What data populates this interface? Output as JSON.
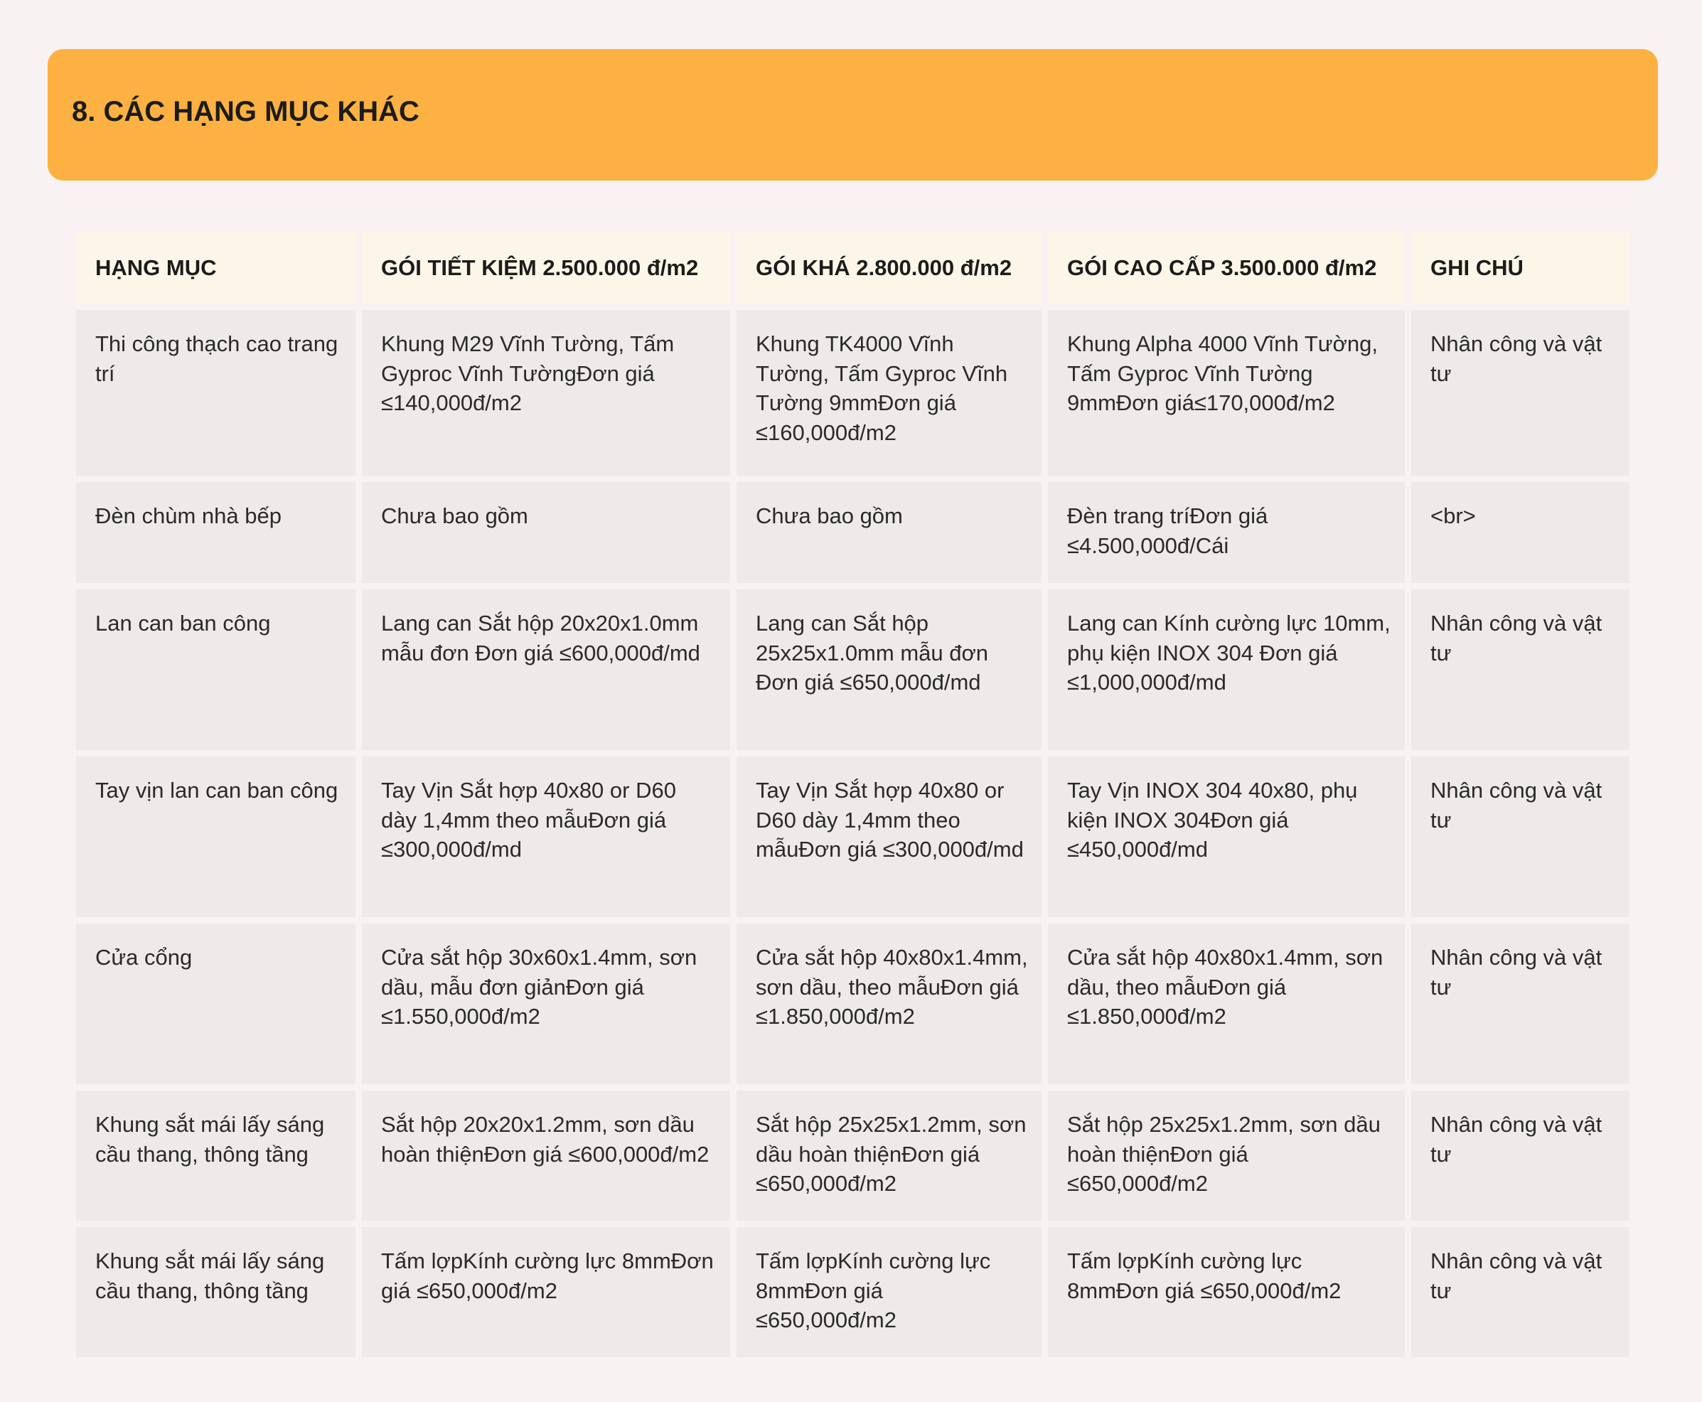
{
  "section": {
    "title": "8. CÁC HẠNG MỤC KHÁC"
  },
  "table": {
    "headers": [
      "HẠNG MỤC",
      "GÓI TIẾT KIỆM 2.500.000 đ/m2",
      "GÓI KHÁ 2.800.000 đ/m2",
      "GÓI CAO CẤP 3.500.000 đ/m2",
      "GHI CHÚ"
    ],
    "rows": [
      {
        "cells": [
          "Thi công thạch cao trang trí",
          "Khung M29 Vĩnh Tường, Tấm Gyproc Vĩnh TườngĐơn giá ≤140,000đ/m2",
          "Khung TK4000 Vĩnh Tường, Tấm Gyproc Vĩnh Tường 9mmĐơn giá ≤160,000đ/m2",
          "Khung Alpha 4000 Vĩnh Tường, Tấm Gyproc Vĩnh Tường 9mmĐơn giá≤170,000đ/m2",
          "Nhân công và vật tư"
        ]
      },
      {
        "cells": [
          "Đèn chùm nhà bếp",
          "Chưa bao gồm",
          "Chưa bao gồm",
          "Đèn trang tríĐơn giá ≤4.500,000đ/Cái",
          "<br>"
        ]
      },
      {
        "cells": [
          "Lan can ban công",
          "Lang can Sắt hộp 20x20x1.0mm mẫu đơn Đơn giá ≤600,000đ/md",
          "Lang can Sắt hộp 25x25x1.0mm mẫu đơn Đơn giá ≤650,000đ/md",
          "Lang can Kính cường lực 10mm, phụ kiện INOX 304 Đơn giá ≤1,000,000đ/md",
          "Nhân công và vật tư"
        ]
      },
      {
        "cells": [
          "Tay vịn lan can ban công",
          "Tay Vịn Sắt hợp 40x80 or D60 dày 1,4mm theo mẫuĐơn giá ≤300,000đ/md",
          "Tay Vịn Sắt hợp 40x80 or D60 dày 1,4mm theo mẫuĐơn giá ≤300,000đ/md",
          "Tay Vịn INOX 304 40x80, phụ kiện INOX 304Đơn giá ≤450,000đ/md",
          "Nhân công và vật tư"
        ]
      },
      {
        "cells": [
          "Cửa cổng",
          "Cửa sắt hộp 30x60x1.4mm, sơn dầu, mẫu đơn giảnĐơn giá ≤1.550,000đ/m2",
          "Cửa sắt hộp 40x80x1.4mm, sơn dầu, theo mẫuĐơn giá ≤1.850,000đ/m2",
          "Cửa sắt hộp 40x80x1.4mm, sơn dầu, theo mẫuĐơn giá ≤1.850,000đ/m2",
          "Nhân công và vật tư"
        ]
      },
      {
        "cells": [
          "Khung sắt mái lấy sáng cầu thang, thông tầng",
          "Sắt hộp 20x20x1.2mm, sơn dầu hoàn thiệnĐơn giá ≤600,000đ/m2",
          "Sắt hộp 25x25x1.2mm, sơn dầu hoàn thiệnĐơn giá ≤650,000đ/m2",
          "Sắt hộp 25x25x1.2mm, sơn dầu hoàn thiệnĐơn giá ≤650,000đ/m2",
          "Nhân công và vật tư"
        ]
      },
      {
        "cells": [
          "Khung sắt mái lấy sáng cầu thang, thông tầng",
          "Tấm lợpKính cường lực 8mmĐơn giá ≤650,000đ/m2",
          "Tấm lợpKính cường lực 8mmĐơn giá ≤650,000đ/m2",
          "Tấm lợpKính cường lực 8mmĐơn giá ≤650,000đ/m2",
          "Nhân công và vật tư"
        ]
      }
    ]
  }
}
